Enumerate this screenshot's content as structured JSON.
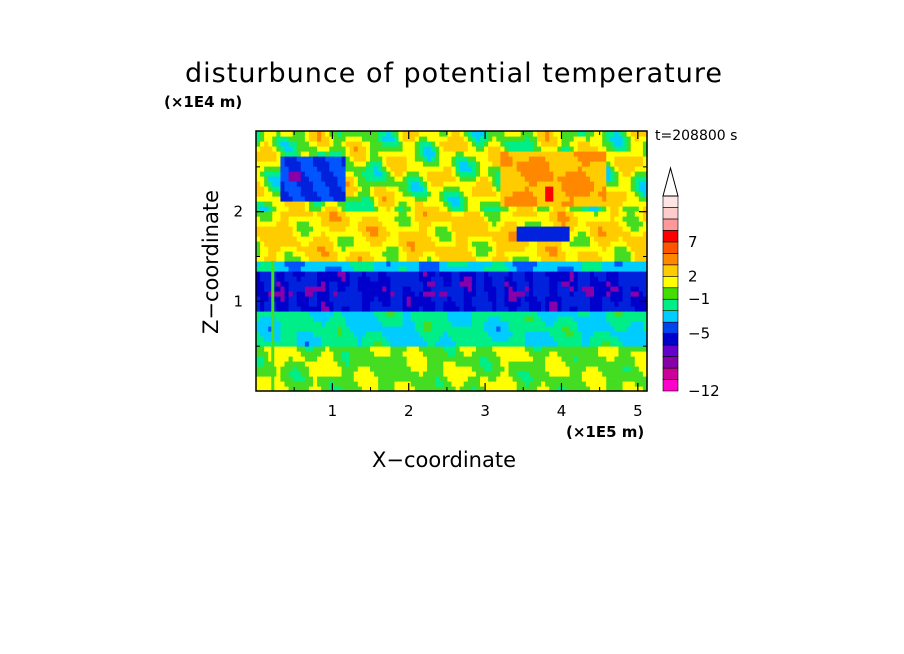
{
  "chart_data": {
    "type": "heatmap",
    "title": "disturbunce of potential temperature",
    "xlabel": "X−coordinate",
    "ylabel": "Z−coordinate",
    "x_unit": "(×1E5 m)",
    "y_unit": "(×1E4 m)",
    "time_label": "t=208800 s",
    "xlim": [
      0,
      5.12
    ],
    "ylim": [
      0,
      2.9
    ],
    "x_ticks": [
      1,
      2,
      3,
      4,
      5
    ],
    "y_ticks": [
      1,
      2
    ],
    "colorbar": {
      "extend": "max",
      "tick_labels": [
        "7",
        "2",
        "−1",
        "−5",
        "−12"
      ],
      "tick_values": [
        7,
        2,
        -1,
        -5,
        -12
      ],
      "colors": [
        "#ff00cc",
        "#cc0099",
        "#8800aa",
        "#6600cc",
        "#0000cc",
        "#0044ee",
        "#00ccff",
        "#00ee88",
        "#44dd00",
        "#ffff00",
        "#ffcc00",
        "#ff8800",
        "#ff5500",
        "#ff0000",
        "#ff9999",
        "#ffcccc",
        "#ffe4e4"
      ]
    },
    "bands": [
      {
        "z_range": [
          0.0,
          0.5
        ],
        "value": 1,
        "description_level": "yellow/green"
      },
      {
        "z_range": [
          0.5,
          0.9
        ],
        "value": -1,
        "description_level": "cyan/green"
      },
      {
        "z_range": [
          0.9,
          1.35
        ],
        "value": -5,
        "description_level": "blue"
      },
      {
        "z_range": [
          1.35,
          2.0
        ],
        "value": 2,
        "description_level": "yellow/orange"
      },
      {
        "z_range": [
          2.0,
          2.9
        ],
        "value": 1,
        "description_level": "mixed"
      }
    ]
  }
}
